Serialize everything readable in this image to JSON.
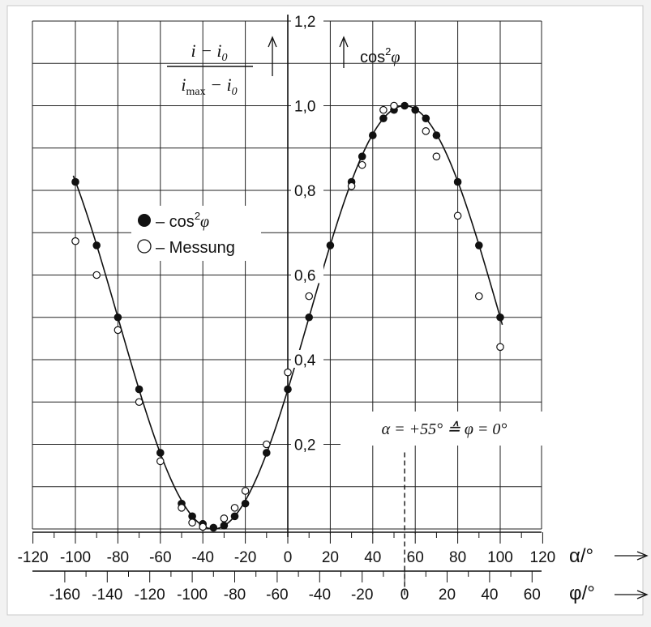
{
  "chart_data": {
    "type": "scatter",
    "xlabel": "α/°",
    "x2label": "φ/°",
    "ylabel_fraction": {
      "num_main": "i − i",
      "num_sub": "0",
      "den_main1": "i",
      "den_sub1": "max",
      "den_main2": " − i",
      "den_sub2": "0"
    },
    "ylabel_right": "cos",
    "ylabel_right_sup": "2",
    "ylabel_right_var": "φ",
    "xlim": [
      -120,
      120
    ],
    "ylim": [
      0,
      1.2
    ],
    "x_ticks": [
      "-120",
      "-100",
      "-80",
      "-60",
      "-40",
      "-20",
      "0",
      "20",
      "40",
      "60",
      "80",
      "100",
      "120"
    ],
    "x2_ticks": [
      "-160",
      "-140",
      "-120",
      "-100",
      "-80",
      "-60",
      "-40",
      "-20",
      "0",
      "20",
      "40",
      "60"
    ],
    "y_ticks": [
      "1,2",
      "1,0",
      "0,8",
      "0,6",
      "0,4",
      "0,2"
    ],
    "legend": [
      {
        "label_prefix": "– cos",
        "sup": "2",
        "var": "φ",
        "marker": "filled"
      },
      {
        "label_prefix": "– Messung",
        "sup": "",
        "var": "",
        "marker": "open"
      }
    ],
    "annotation": "α = +55° ≙ φ = 0°",
    "series": [
      {
        "name": "cos²φ",
        "marker": "filled",
        "points": [
          [
            -100,
            0.82
          ],
          [
            -90,
            0.67
          ],
          [
            -80,
            0.5
          ],
          [
            -70,
            0.33
          ],
          [
            -60,
            0.18
          ],
          [
            -50,
            0.06
          ],
          [
            -45,
            0.03
          ],
          [
            -40,
            0.012
          ],
          [
            -35,
            0.003
          ],
          [
            -30,
            0.008
          ],
          [
            -25,
            0.03
          ],
          [
            -20,
            0.06
          ],
          [
            -10,
            0.18
          ],
          [
            0,
            0.33
          ],
          [
            10,
            0.5
          ],
          [
            20,
            0.67
          ],
          [
            30,
            0.82
          ],
          [
            35,
            0.88
          ],
          [
            40,
            0.93
          ],
          [
            45,
            0.97
          ],
          [
            50,
            0.99
          ],
          [
            55,
            1.0
          ],
          [
            60,
            0.99
          ],
          [
            65,
            0.97
          ],
          [
            70,
            0.93
          ],
          [
            80,
            0.82
          ],
          [
            90,
            0.67
          ],
          [
            100,
            0.5
          ]
        ]
      },
      {
        "name": "Messung",
        "marker": "open",
        "points": [
          [
            -100,
            0.68
          ],
          [
            -90,
            0.6
          ],
          [
            -80,
            0.47
          ],
          [
            -70,
            0.3
          ],
          [
            -60,
            0.16
          ],
          [
            -50,
            0.05
          ],
          [
            -45,
            0.015
          ],
          [
            -40,
            0.005
          ],
          [
            -30,
            0.025
          ],
          [
            -25,
            0.05
          ],
          [
            -20,
            0.09
          ],
          [
            -10,
            0.2
          ],
          [
            0,
            0.37
          ],
          [
            10,
            0.55
          ],
          [
            30,
            0.81
          ],
          [
            35,
            0.86
          ],
          [
            45,
            0.99
          ],
          [
            50,
            1.0
          ],
          [
            65,
            0.94
          ],
          [
            70,
            0.88
          ],
          [
            80,
            0.74
          ],
          [
            90,
            0.55
          ],
          [
            100,
            0.43
          ]
        ]
      }
    ],
    "curve": "cos^2((alpha - 55) degrees)",
    "grid": true
  }
}
